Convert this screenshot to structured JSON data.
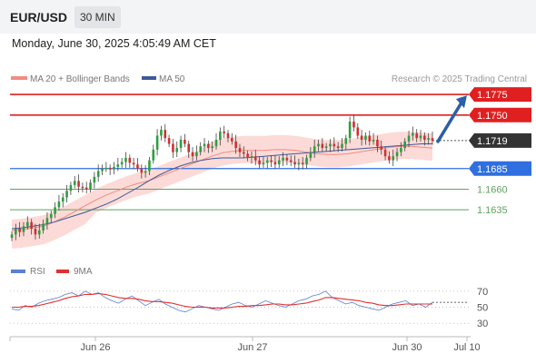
{
  "header": {
    "symbol": "EUR/USD",
    "timeframe": "30 MIN"
  },
  "timestamp": "Monday, June 30, 2025 4:05:49 AM CET",
  "legend": {
    "ma20_label": "MA 20 + Bollinger Bands",
    "ma50_label": "MA 50",
    "ma20_color": "#f28b82",
    "ma50_color": "#3c5a99"
  },
  "credit": "Research © 2025 Trading Central",
  "rsi_legend": {
    "rsi_label": "RSI",
    "ma_label": "9MA",
    "rsi_color": "#5b7fd4",
    "ma_color": "#e03030"
  },
  "colors": {
    "up": "#2e9e3e",
    "down": "#d32f2f",
    "resistance": "#e02020",
    "support": "#2f6fe0",
    "target": "#5ea35e",
    "current": "#333333",
    "arrow": "#2b5fa6",
    "band": "#fbd3d0"
  },
  "chart_data": [
    {
      "type": "candlestick",
      "instrument": "EUR/USD",
      "timeframe": "30 MIN",
      "x_ticks": [
        "Jun 26",
        "Jun 27",
        "Jun 30",
        "Jul 10"
      ],
      "ylim": [
        1.159,
        1.1785
      ],
      "levels": [
        {
          "label": "1.1775",
          "value": 1.1775,
          "kind": "resistance"
        },
        {
          "label": "1.1750",
          "value": 1.175,
          "kind": "resistance"
        },
        {
          "label": "1.1719",
          "value": 1.1719,
          "kind": "current"
        },
        {
          "label": "1.1685",
          "value": 1.1685,
          "kind": "support"
        },
        {
          "label": "1.1660",
          "value": 1.166,
          "kind": "target"
        },
        {
          "label": "1.1635",
          "value": 1.1635,
          "kind": "target"
        }
      ],
      "close_path": [
        1.1605,
        1.1612,
        1.1608,
        1.1615,
        1.162,
        1.1612,
        1.1605,
        1.161,
        1.1618,
        1.1625,
        1.163,
        1.1638,
        1.1645,
        1.165,
        1.1658,
        1.1665,
        1.167,
        1.1663,
        1.1662,
        1.166,
        1.1668,
        1.1675,
        1.1682,
        1.1685,
        1.1686,
        1.1684,
        1.1687,
        1.169,
        1.1693,
        1.1698,
        1.1692,
        1.169,
        1.1685,
        1.168,
        1.1682,
        1.1695,
        1.1708,
        1.1725,
        1.1732,
        1.1722,
        1.1715,
        1.1705,
        1.171,
        1.172,
        1.1715,
        1.1705,
        1.17,
        1.1705,
        1.1712,
        1.1715,
        1.171,
        1.1712,
        1.172,
        1.173,
        1.1728,
        1.1722,
        1.1718,
        1.171,
        1.1705,
        1.1703,
        1.1698,
        1.17,
        1.1695,
        1.169,
        1.1692,
        1.1695,
        1.1693,
        1.169,
        1.1695,
        1.1698,
        1.1695,
        1.1693,
        1.169,
        1.1692,
        1.169,
        1.1698,
        1.1705,
        1.1712,
        1.1715,
        1.171,
        1.1712,
        1.1715,
        1.1712,
        1.171,
        1.1715,
        1.1722,
        1.1742,
        1.1735,
        1.1725,
        1.172,
        1.1725,
        1.1718,
        1.172,
        1.1712,
        1.1708,
        1.17,
        1.1695,
        1.17,
        1.1705,
        1.171,
        1.1718,
        1.1725,
        1.1728,
        1.1722,
        1.1725,
        1.172,
        1.1722,
        1.1719
      ],
      "ma20": [
        1.161,
        1.1611,
        1.1613,
        1.1615,
        1.162,
        1.1626,
        1.1633,
        1.164,
        1.1647,
        1.1653,
        1.1658,
        1.1663,
        1.1667,
        1.167,
        1.1675,
        1.168,
        1.1685,
        1.169,
        1.1695,
        1.17,
        1.1704,
        1.1706,
        1.1707,
        1.1707,
        1.1707,
        1.1708,
        1.1708,
        1.1707,
        1.1705,
        1.1703,
        1.1702,
        1.1702,
        1.1703,
        1.1705,
        1.1707,
        1.1709,
        1.1711,
        1.1712,
        1.1712,
        1.1711,
        1.171
      ],
      "ma50": [
        1.1612,
        1.1613,
        1.1615,
        1.1617,
        1.162,
        1.1624,
        1.1628,
        1.1632,
        1.1637,
        1.1642,
        1.1648,
        1.1655,
        1.1662,
        1.167,
        1.1677,
        1.1683,
        1.1688,
        1.1692,
        1.1695,
        1.1697,
        1.1698,
        1.1698,
        1.1698,
        1.1699,
        1.17,
        1.1701,
        1.1702,
        1.1703,
        1.1704,
        1.1705,
        1.1706,
        1.1707,
        1.1708,
        1.1709,
        1.171,
        1.1711,
        1.1712,
        1.1713,
        1.1714,
        1.1715,
        1.1715
      ],
      "projection": {
        "from": 1.1719,
        "to": 1.1775
      }
    },
    {
      "type": "line",
      "title": "RSI",
      "series": [
        {
          "name": "RSI",
          "values": [
            48,
            46,
            52,
            50,
            55,
            58,
            60,
            62,
            66,
            68,
            64,
            70,
            66,
            68,
            62,
            58,
            55,
            60,
            64,
            58,
            52,
            56,
            60,
            54,
            50,
            46,
            44,
            48,
            52,
            50,
            48,
            46,
            50,
            54,
            56,
            52,
            50,
            54,
            58,
            55,
            52,
            50,
            54,
            58,
            60,
            64,
            66,
            70,
            62,
            58,
            54,
            56,
            52,
            50,
            48,
            46,
            50,
            54,
            56,
            58,
            52,
            54,
            50,
            56
          ]
        },
        {
          "name": "9MA",
          "values": [
            50,
            50,
            51,
            51,
            52,
            54,
            56,
            58,
            61,
            63,
            64,
            66,
            66,
            67,
            66,
            64,
            62,
            61,
            61,
            60,
            58,
            57,
            57,
            56,
            55,
            53,
            51,
            50,
            50,
            50,
            49,
            49,
            49,
            50,
            51,
            51,
            52,
            52,
            53,
            54,
            54,
            53,
            53,
            54,
            55,
            57,
            59,
            62,
            62,
            61,
            60,
            59,
            58,
            56,
            55,
            53,
            52,
            52,
            53,
            54,
            54,
            54,
            54,
            54
          ]
        }
      ],
      "y_ticks": [
        "70",
        "50",
        "30"
      ],
      "ylim": [
        20,
        80
      ]
    }
  ]
}
